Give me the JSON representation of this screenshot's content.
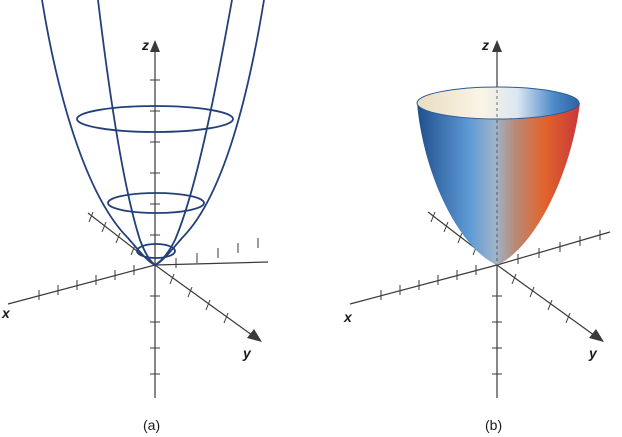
{
  "figure": {
    "panels": [
      {
        "id": "a",
        "label": "(a)",
        "style": "wireframe",
        "axes": {
          "x": "x",
          "y": "y",
          "z": "z"
        }
      },
      {
        "id": "b",
        "label": "(b)",
        "style": "shaded",
        "axes": {
          "x": "x",
          "y": "y",
          "z": "z"
        }
      }
    ],
    "colors": {
      "wireframe": "#23407a",
      "axis": "#3a3a3a",
      "surface_blue": "#2f6fb3",
      "surface_orange": "#e0612a",
      "surface_cream": "#f6ead0"
    }
  }
}
